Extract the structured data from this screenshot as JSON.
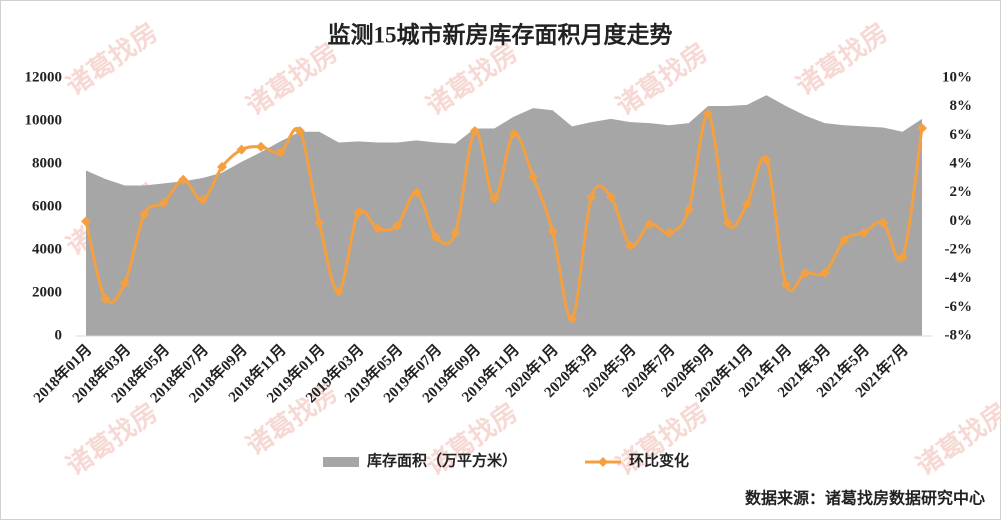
{
  "chart_data": {
    "type": "area-line",
    "title": "监测15城市新房库存面积月度走势",
    "watermark": "诸葛找房",
    "source": "数据来源：诸葛找房数据研究中心",
    "categories": [
      "2018年01月",
      null,
      "2018年03月",
      null,
      "2018年05月",
      null,
      "2018年07月",
      null,
      "2018年09月",
      null,
      "2018年11月",
      null,
      "2019年01月",
      null,
      "2019年03月",
      null,
      "2019年05月",
      null,
      "2019年07月",
      null,
      "2019年09月",
      null,
      "2019年11月",
      null,
      "2020年1月",
      null,
      "2020年3月",
      null,
      "2020年5月",
      null,
      "2020年7月",
      null,
      "2020年9月",
      null,
      "2020年11月",
      null,
      "2021年1月",
      null,
      "2021年3月",
      null,
      "2021年5月",
      null,
      "2021年7月",
      null
    ],
    "series": [
      {
        "name": "库存面积（万平方米）",
        "type": "area",
        "color": "#a6a6a6",
        "axis": "y",
        "values": [
          7700,
          7300,
          7000,
          7000,
          7100,
          7200,
          7350,
          7600,
          8100,
          8550,
          9050,
          9500,
          9500,
          9000,
          9050,
          9000,
          9000,
          9100,
          9000,
          8950,
          9650,
          9650,
          10200,
          10600,
          10500,
          9750,
          9950,
          10100,
          9950,
          9900,
          9800,
          9900,
          10700,
          10700,
          10750,
          11200,
          10700,
          10250,
          9900,
          9800,
          9750,
          9700,
          9500,
          10100
        ]
      },
      {
        "name": "环比变化",
        "type": "line",
        "color": "#f4a040",
        "axis": "y2",
        "values": [
          0,
          -5.4,
          -4.3,
          0.5,
          1.3,
          2.9,
          1.5,
          3.8,
          5.0,
          5.2,
          4.8,
          6.3,
          -0.1,
          -4.9,
          0.6,
          -0.5,
          -0.3,
          2.0,
          -1.1,
          -0.8,
          6.3,
          1.6,
          6.1,
          3.1,
          -0.7,
          -6.8,
          1.7,
          1.7,
          -1.7,
          -0.2,
          -0.8,
          0.8,
          7.5,
          -0.1,
          1.2,
          4.3,
          -4.4,
          -3.6,
          -3.6,
          -1.3,
          -0.8,
          -0.1,
          -2.5,
          6.5
        ]
      }
    ],
    "ylim": [
      0,
      12000
    ],
    "yticks": [
      0,
      2000,
      4000,
      6000,
      8000,
      10000,
      12000
    ],
    "y2lim": [
      -8,
      10
    ],
    "y2ticks": [
      {
        "value": -8,
        "label": "-8%"
      },
      {
        "value": -6,
        "label": "-6%"
      },
      {
        "value": -4,
        "label": "-4%"
      },
      {
        "value": -2,
        "label": "-2%"
      },
      {
        "value": 0,
        "label": "0%"
      },
      {
        "value": 2,
        "label": "2%"
      },
      {
        "value": 4,
        "label": "4%"
      },
      {
        "value": 6,
        "label": "6%"
      },
      {
        "value": 8,
        "label": "8%"
      },
      {
        "value": 10,
        "label": "10%"
      }
    ],
    "legend": "bottom"
  }
}
